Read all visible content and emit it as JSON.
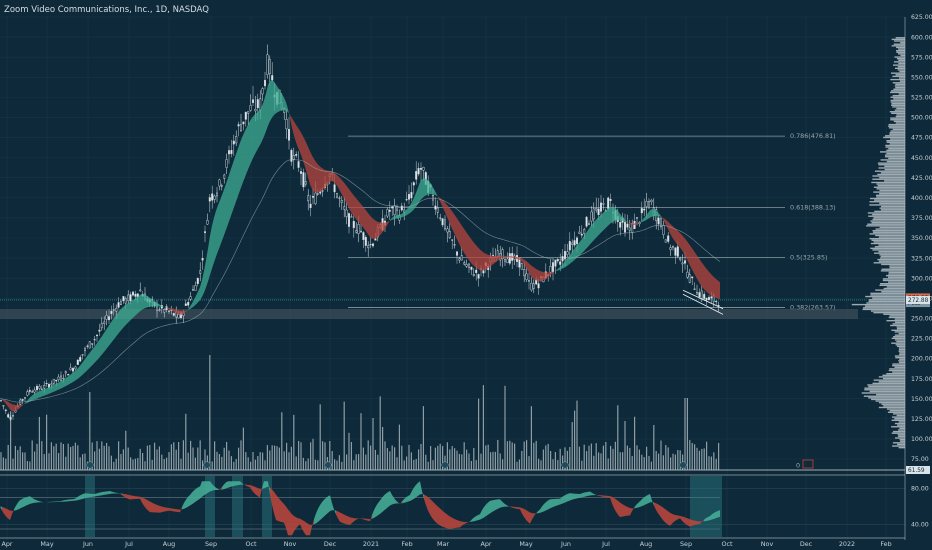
{
  "header": {
    "symbol_title": "Zoom Video Communications, Inc., 1D, NASDAQ"
  },
  "chart_data": {
    "type": "candlestick",
    "title": "Zoom Video Communications, Inc., 1D, NASDAQ",
    "x_ticks": [
      "Apr",
      "May",
      "Jun",
      "Jul",
      "Aug",
      "Sep",
      "Oct",
      "Nov",
      "Dec",
      "2021",
      "Feb",
      "Mar",
      "Apr",
      "May",
      "Jun",
      "Jul",
      "Aug",
      "Sep",
      "Oct",
      "Nov",
      "Dec",
      "2022",
      "Feb"
    ],
    "price_axis": {
      "ticks": [
        625,
        600,
        575,
        550,
        525,
        500,
        475,
        450,
        425,
        400,
        375,
        350,
        325,
        300,
        275,
        250,
        225,
        200,
        175,
        150,
        125,
        100,
        75
      ],
      "range": [
        62,
        630
      ]
    },
    "price_tags": [
      {
        "label": "276.08",
        "value": 276.08
      },
      {
        "label": "Post",
        "value": 269.0
      },
      {
        "label": "272.88",
        "value": 272.88
      }
    ],
    "fibonacci_levels": [
      {
        "label": "0.786(476.81)",
        "value": 476.81
      },
      {
        "label": "0.618(388.13)",
        "value": 388.13
      },
      {
        "label": "0.5(325.85)",
        "value": 325.85
      },
      {
        "label": "0.382(263.57)",
        "value": 263.57
      }
    ],
    "volume_label": "0",
    "volume_value_tag": "61.59",
    "oscillator_axis": {
      "ticks": [
        80,
        40
      ],
      "range": [
        25,
        95
      ]
    },
    "price_path": [
      [
        0,
        150
      ],
      [
        10,
        125
      ],
      [
        20,
        145
      ],
      [
        30,
        160
      ],
      [
        45,
        165
      ],
      [
        60,
        175
      ],
      [
        75,
        190
      ],
      [
        85,
        210
      ],
      [
        95,
        225
      ],
      [
        110,
        255
      ],
      [
        120,
        270
      ],
      [
        130,
        275
      ],
      [
        140,
        285
      ],
      [
        150,
        270
      ],
      [
        160,
        262
      ],
      [
        170,
        258
      ],
      [
        180,
        250
      ],
      [
        190,
        275
      ],
      [
        200,
        305
      ],
      [
        210,
        400
      ],
      [
        220,
        415
      ],
      [
        230,
        455
      ],
      [
        240,
        490
      ],
      [
        250,
        510
      ],
      [
        260,
        515
      ],
      [
        268,
        570
      ],
      [
        276,
        530
      ],
      [
        285,
        510
      ],
      [
        292,
        450
      ],
      [
        300,
        440
      ],
      [
        310,
        390
      ],
      [
        320,
        410
      ],
      [
        330,
        430
      ],
      [
        340,
        395
      ],
      [
        350,
        370
      ],
      [
        360,
        360
      ],
      [
        370,
        340
      ],
      [
        380,
        360
      ],
      [
        390,
        385
      ],
      [
        400,
        380
      ],
      [
        410,
        400
      ],
      [
        420,
        440
      ],
      [
        430,
        410
      ],
      [
        440,
        380
      ],
      [
        450,
        350
      ],
      [
        460,
        325
      ],
      [
        470,
        310
      ],
      [
        480,
        305
      ],
      [
        490,
        320
      ],
      [
        500,
        330
      ],
      [
        510,
        325
      ],
      [
        520,
        320
      ],
      [
        530,
        290
      ],
      [
        540,
        295
      ],
      [
        550,
        310
      ],
      [
        560,
        320
      ],
      [
        570,
        340
      ],
      [
        580,
        355
      ],
      [
        590,
        375
      ],
      [
        600,
        385
      ],
      [
        610,
        395
      ],
      [
        620,
        370
      ],
      [
        630,
        360
      ],
      [
        640,
        375
      ],
      [
        650,
        395
      ],
      [
        660,
        370
      ],
      [
        670,
        340
      ],
      [
        680,
        330
      ],
      [
        690,
        300
      ],
      [
        700,
        280
      ],
      [
        710,
        273
      ],
      [
        720,
        272
      ]
    ],
    "volume_bars": "daily volume histogram, Apr 2020 - Sep 2021",
    "oscillator_series": "two-line oscillator with green/red cloud fill"
  }
}
